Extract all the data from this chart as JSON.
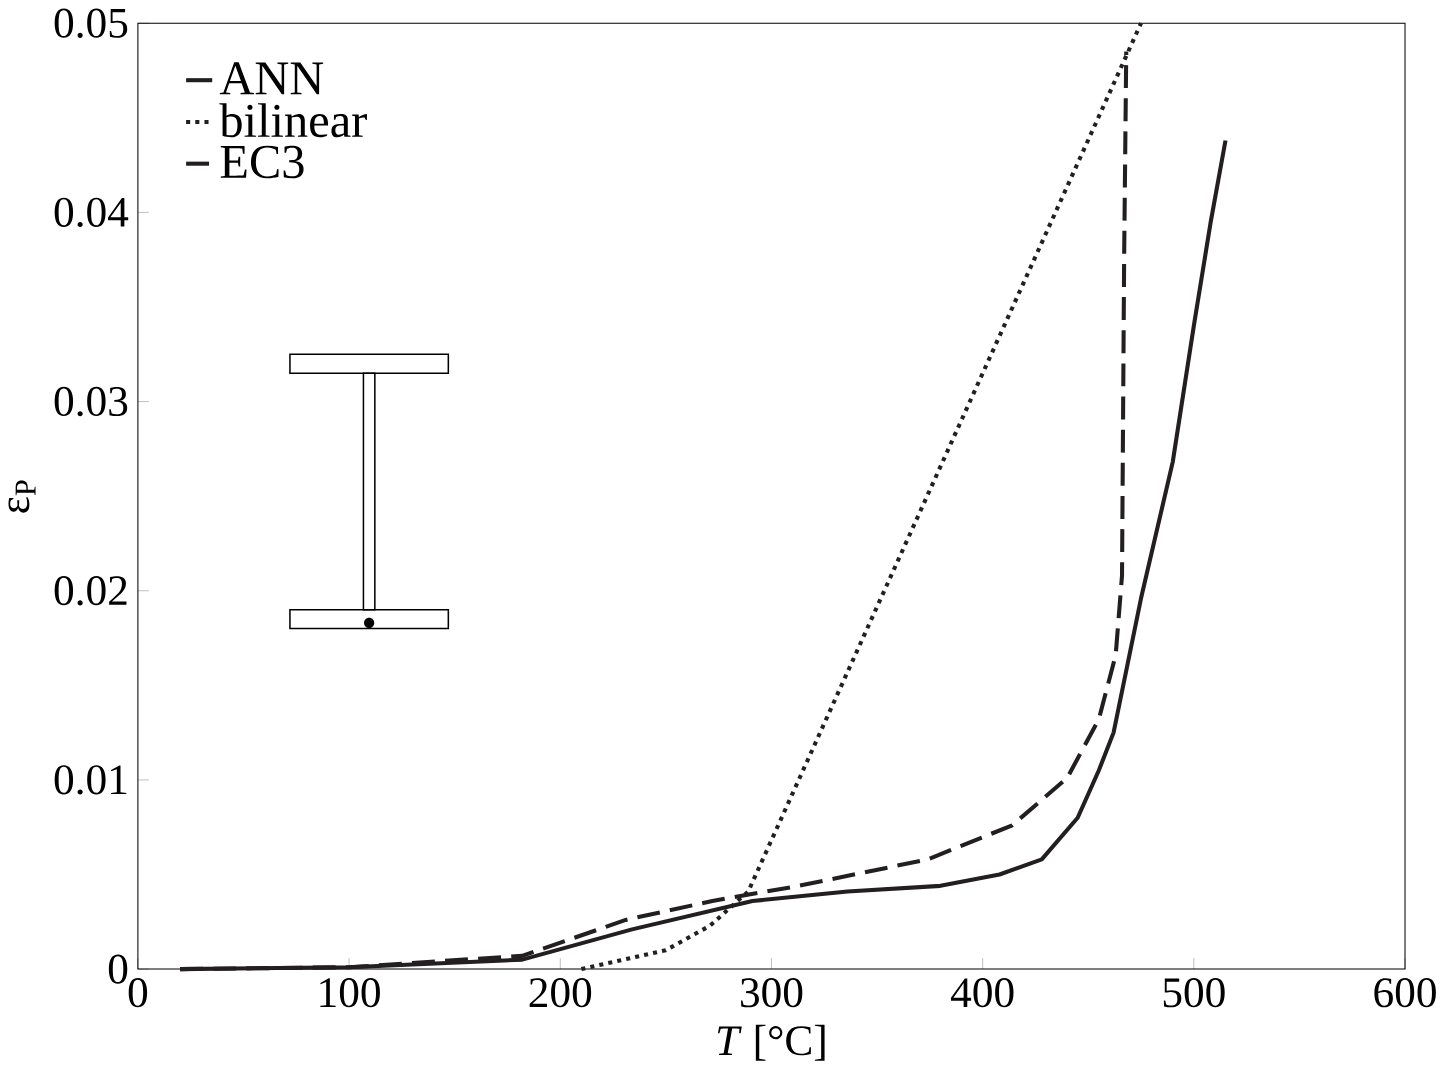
{
  "chart_data": {
    "type": "line",
    "xlabel": "*T* [°C]",
    "ylabel": "ε$_{P}$",
    "xlim": [
      0,
      600
    ],
    "ylim": [
      0,
      0.05
    ],
    "xticks": [
      0,
      100,
      200,
      300,
      400,
      500,
      600
    ],
    "yticks": [
      0,
      0.01,
      0.02,
      0.03,
      0.04,
      0.05
    ],
    "grid": false,
    "legend": "top left",
    "series": [
      {
        "name": "ANN",
        "color": "#231f20",
        "line_style": "solid",
        "x": [
          20,
          100,
          182,
          234,
          291,
          336,
          380,
          408,
          428,
          445,
          455,
          462,
          475,
          490,
          500,
          508,
          515
        ],
        "values": [
          0,
          0.0001,
          0.0005,
          0.0021,
          0.0036,
          0.0041,
          0.0044,
          0.005,
          0.0058,
          0.008,
          0.0105,
          0.0125,
          0.0196,
          0.0268,
          0.034,
          0.0395,
          0.0438
        ]
      },
      {
        "name": "bilinear",
        "color": "#231f20",
        "line_style": "dotted",
        "x": [
          210,
          250,
          271,
          289,
          475
        ],
        "values": [
          0,
          0.001,
          0.0023,
          0.0041,
          0.05
        ]
      },
      {
        "name": "EC3",
        "color": "#231f20",
        "line_style": "dashed",
        "x": [
          20,
          100,
          182,
          231,
          272,
          313,
          374,
          414,
          440,
          455,
          463,
          466,
          467,
          468
        ],
        "values": [
          0,
          0.0001,
          0.0007,
          0.0026,
          0.0036,
          0.0044,
          0.0058,
          0.0076,
          0.0101,
          0.0132,
          0.0166,
          0.0208,
          0.0376,
          0.0485
        ]
      }
    ]
  }
}
